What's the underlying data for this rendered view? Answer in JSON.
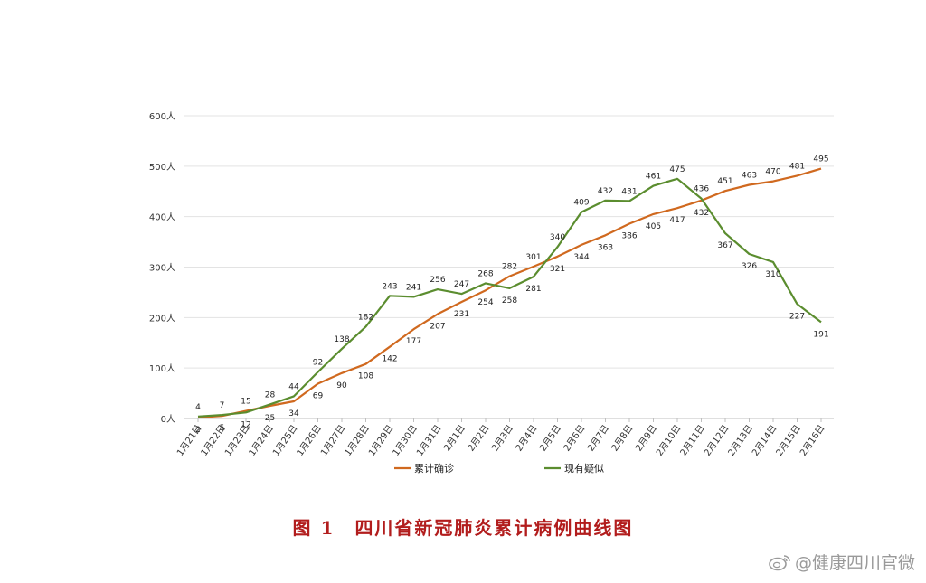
{
  "chart_data": {
    "type": "line",
    "categories": [
      "1月21日",
      "1月22日",
      "1月23日",
      "1月24日",
      "1月25日",
      "1月26日",
      "1月27日",
      "1月28日",
      "1月29日",
      "1月30日",
      "1月31日",
      "2月1日",
      "2月2日",
      "2月3日",
      "2月4日",
      "2月5日",
      "2月6日",
      "2月7日",
      "2月8日",
      "2月9日",
      "2月10日",
      "2月11日",
      "2月12日",
      "2月13日",
      "2月14日",
      "2月15日",
      "2月16日"
    ],
    "y_ticks": [
      "0人",
      "100人",
      "200人",
      "300人",
      "400人",
      "500人",
      "600人"
    ],
    "ylim": [
      0,
      600
    ],
    "grid": true,
    "legend_position": "bottom",
    "series": [
      {
        "name": "累计确诊",
        "color": "#d0691f",
        "values": [
          2,
          5,
          15,
          25,
          34,
          69,
          90,
          108,
          142,
          177,
          207,
          231,
          254,
          282,
          301,
          321,
          344,
          363,
          386,
          405,
          417,
          432,
          451,
          463,
          470,
          481,
          495
        ]
      },
      {
        "name": "现有疑似",
        "color": "#5b8d2f",
        "values": [
          4,
          7,
          12,
          28,
          44,
          92,
          138,
          182,
          243,
          241,
          256,
          247,
          268,
          258,
          281,
          340,
          409,
          432,
          431,
          461,
          475,
          436,
          367,
          326,
          310,
          227,
          191
        ]
      }
    ]
  },
  "caption": {
    "figure_no": "图 1",
    "title": "四川省新冠肺炎累计病例曲线图"
  },
  "watermark": {
    "text": "@健康四川官微",
    "icon": "weibo-logo-icon"
  }
}
